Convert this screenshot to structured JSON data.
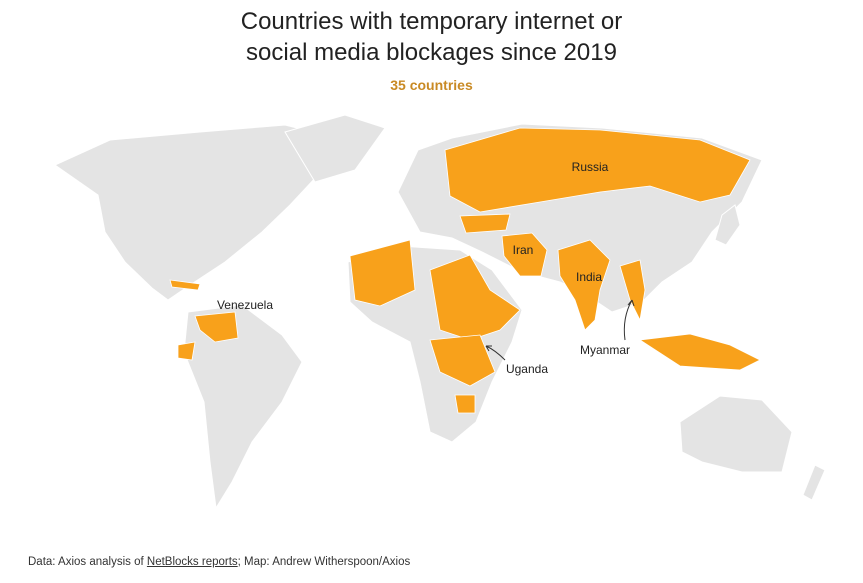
{
  "header": {
    "title": "Countries with temporary internet or social media blockages since 2019",
    "subtitle": "35 countries"
  },
  "map": {
    "labels": {
      "russia": "Russia",
      "iran": "Iran",
      "india": "India",
      "venezuela": "Venezuela",
      "uganda": "Uganda",
      "myanmar": "Myanmar"
    }
  },
  "footer": {
    "source_prefix": "Data: Axios analysis of",
    "source_link": "NetBlocks reports",
    "source_suffix": "; Map: Andrew Witherspoon/Axios"
  }
}
